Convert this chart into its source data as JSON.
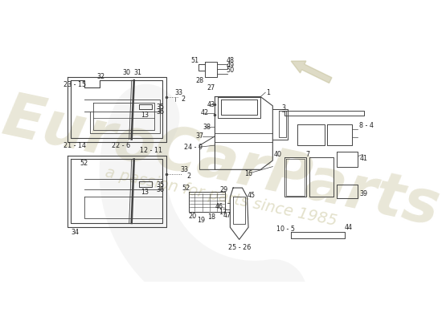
{
  "bg_color": "#ffffff",
  "line_color": "#444444",
  "label_color": "#222222",
  "label_fontsize": 5.8,
  "wm_color1": "#d8d4b8",
  "wm_color2": "#ccc8a0",
  "wm_alpha": 0.55,
  "arrow_color": "#c8c4a0"
}
